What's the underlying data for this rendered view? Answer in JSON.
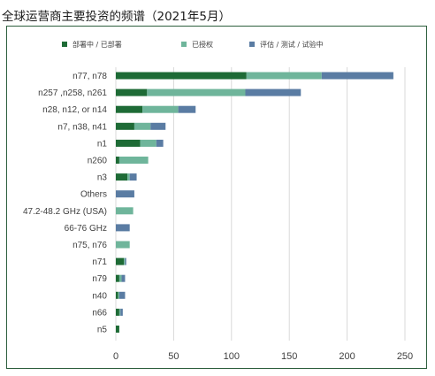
{
  "title": "全球运营商主要投资的频谱（2021年5月）",
  "chart_data": {
    "type": "bar",
    "orientation": "horizontal",
    "stacked": true,
    "categories": [
      "n77, n78",
      "n257 ,n258, n261",
      "n28, n12, or n14",
      "n7, n38, n41",
      "n1",
      "n260",
      "n3",
      "Others",
      "47.2-48.2 GHz (USA)",
      "66-76 GHz",
      "n75, n76",
      "n71",
      "n79",
      "n40",
      "n66",
      "n5"
    ],
    "series": [
      {
        "name": "部署中 / 已部署",
        "color": "#1e6b36",
        "values": [
          113,
          27,
          23,
          16,
          21,
          3,
          10,
          0,
          0,
          0,
          0,
          7,
          3,
          2,
          3,
          3
        ]
      },
      {
        "name": "已授权",
        "color": "#6fb59b",
        "values": [
          65,
          85,
          31,
          14,
          14,
          25,
          2,
          0,
          15,
          0,
          12,
          1,
          2,
          1,
          1,
          0
        ]
      },
      {
        "name": "评估 / 测试 / 试验中",
        "color": "#5a7ca3",
        "values": [
          62,
          48,
          15,
          13,
          6,
          0,
          6,
          16,
          0,
          12,
          0,
          1,
          3,
          5,
          2,
          0
        ]
      }
    ],
    "xlim": [
      0,
      250
    ],
    "xticks": [
      0,
      50,
      100,
      150,
      200,
      250
    ],
    "grid": "vertical",
    "legend": "top"
  }
}
